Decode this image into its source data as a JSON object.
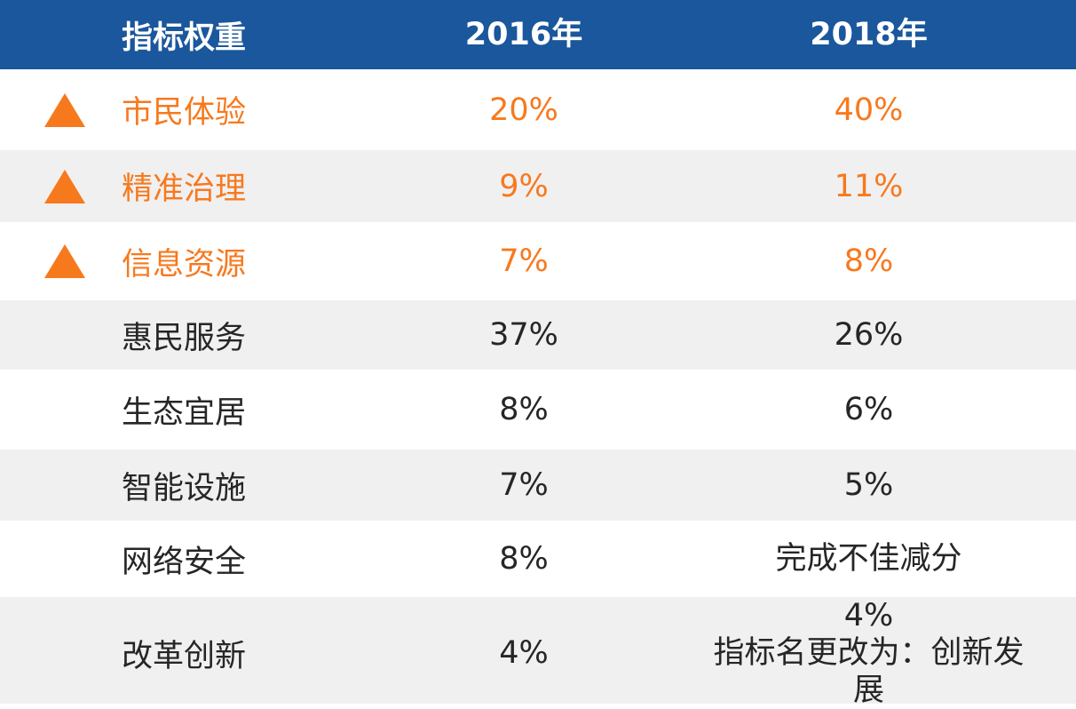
{
  "chart_data": {
    "type": "table",
    "columns": [
      "指标权重",
      "2016年",
      "2018年"
    ],
    "rows": [
      {
        "indicator": "市民体验",
        "w2016": "20%",
        "w2018": "40%",
        "up": true
      },
      {
        "indicator": "精准治理",
        "w2016": "9%",
        "w2018": "11%",
        "up": true
      },
      {
        "indicator": "信息资源",
        "w2016": "7%",
        "w2018": "8%",
        "up": true
      },
      {
        "indicator": "惠民服务",
        "w2016": "37%",
        "w2018": "26%",
        "up": false
      },
      {
        "indicator": "生态宜居",
        "w2016": "8%",
        "w2018": "6%",
        "up": false
      },
      {
        "indicator": "智能设施",
        "w2016": "7%",
        "w2018": "5%",
        "up": false
      },
      {
        "indicator": "网络安全",
        "w2016": "8%",
        "w2018": "完成不佳减分",
        "up": false
      },
      {
        "indicator": "改革创新",
        "w2016": "4%",
        "w2018": "4%",
        "w2018_note": "指标名更改为：创新发展",
        "up": false
      }
    ],
    "legend_hint": "橙色三角形表示权重上升的指标",
    "layout": {
      "legend_position": "none",
      "grid": "off"
    }
  },
  "colors": {
    "header_bg": "#1A579C",
    "header_text": "#FFFFFF",
    "highlight_orange": "#F7791E",
    "row_alt_bg": "#F0F0F0",
    "row_bg": "#FFFFFF",
    "body_text": "#262626"
  },
  "icons": {
    "up_triangle": "triangle-up-icon"
  }
}
